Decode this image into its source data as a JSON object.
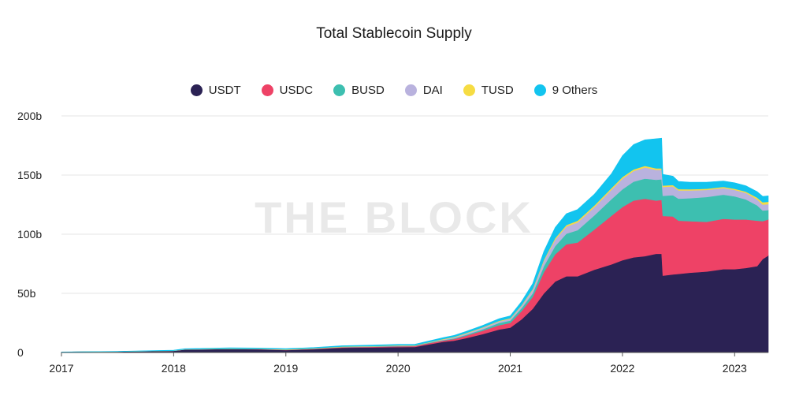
{
  "chart_data": {
    "type": "area",
    "stacked": true,
    "title": "Total Stablecoin Supply",
    "watermark": "THE BLOCK",
    "xlabel": "",
    "ylabel": "",
    "ylim": [
      0,
      200
    ],
    "xlim": [
      2017.0,
      2023.3
    ],
    "y_ticks": [
      {
        "value": 0,
        "label": "0"
      },
      {
        "value": 50,
        "label": "50b"
      },
      {
        "value": 100,
        "label": "100b"
      },
      {
        "value": 150,
        "label": "150b"
      },
      {
        "value": 200,
        "label": "200b"
      }
    ],
    "x_ticks": [
      {
        "value": 2017,
        "label": "2017"
      },
      {
        "value": 2018,
        "label": "2018"
      },
      {
        "value": 2019,
        "label": "2019"
      },
      {
        "value": 2020,
        "label": "2020"
      },
      {
        "value": 2021,
        "label": "2021"
      },
      {
        "value": 2022,
        "label": "2022"
      },
      {
        "value": 2023,
        "label": "2023"
      }
    ],
    "legend_position": "top-center",
    "x": [
      2017.0,
      2017.5,
      2018.0,
      2018.1,
      2018.5,
      2018.75,
      2019.0,
      2019.25,
      2019.5,
      2019.75,
      2020.0,
      2020.15,
      2020.25,
      2020.4,
      2020.5,
      2020.6,
      2020.75,
      2020.9,
      2021.0,
      2021.1,
      2021.2,
      2021.3,
      2021.4,
      2021.5,
      2021.6,
      2021.75,
      2021.9,
      2022.0,
      2022.1,
      2022.2,
      2022.3,
      2022.35,
      2022.36,
      2022.45,
      2022.5,
      2022.6,
      2022.75,
      2022.9,
      2023.0,
      2023.1,
      2023.2,
      2023.25,
      2023.3
    ],
    "series": [
      {
        "name": "USDT",
        "color": "#2b2254",
        "values": [
          0.4,
          0.8,
          1.5,
          2.5,
          3.0,
          2.7,
          2.0,
          2.8,
          4.0,
          4.3,
          4.6,
          4.7,
          6.5,
          9.0,
          10.0,
          12.0,
          15.5,
          19.5,
          21.0,
          28.0,
          37.0,
          50.0,
          60.0,
          64.5,
          64.5,
          70.0,
          74.5,
          78.0,
          80.5,
          81.5,
          83.5,
          83.5,
          65.0,
          66.0,
          66.5,
          67.5,
          68.5,
          70.5,
          70.5,
          71.5,
          73.0,
          79.0,
          82.0
        ]
      },
      {
        "name": "USDC",
        "color": "#ee4266",
        "values": [
          0,
          0,
          0,
          0.05,
          0.1,
          0.25,
          0.3,
          0.35,
          0.45,
          0.5,
          0.7,
          0.8,
          1.0,
          1.1,
          1.5,
          2.0,
          2.8,
          3.6,
          4.0,
          7.0,
          10.0,
          18.0,
          23.0,
          27.0,
          28.5,
          34.0,
          41.0,
          45.0,
          48.0,
          48.5,
          45.0,
          45.5,
          50.5,
          49.0,
          45.0,
          43.5,
          42.0,
          42.5,
          42.0,
          41.0,
          38.5,
          32.0,
          30.5
        ]
      },
      {
        "name": "BUSD",
        "color": "#3dbfb0",
        "values": [
          0,
          0,
          0,
          0,
          0,
          0,
          0.05,
          0.1,
          0.15,
          0.2,
          0.25,
          0.3,
          0.3,
          0.35,
          0.5,
          0.8,
          1.2,
          1.9,
          2.0,
          2.5,
          3.0,
          5.0,
          7.0,
          9.0,
          10.5,
          12.0,
          14.0,
          15.0,
          16.0,
          17.0,
          17.5,
          17.5,
          17.0,
          18.0,
          18.5,
          19.5,
          21.0,
          20.5,
          19.5,
          17.0,
          13.0,
          9.0,
          8.0
        ]
      },
      {
        "name": "DAI",
        "color": "#b9b2de",
        "values": [
          0,
          0,
          0.02,
          0.03,
          0.05,
          0.06,
          0.08,
          0.1,
          0.15,
          0.18,
          0.2,
          0.1,
          0.12,
          0.5,
          0.8,
          1.0,
          1.2,
          1.3,
          1.5,
          2.0,
          3.0,
          4.5,
          5.5,
          6.0,
          6.5,
          7.0,
          8.0,
          9.0,
          9.0,
          9.5,
          8.5,
          8.0,
          7.5,
          7.5,
          7.0,
          6.5,
          6.0,
          5.5,
          5.5,
          5.5,
          5.0,
          5.0,
          5.0
        ]
      },
      {
        "name": "TUSD",
        "color": "#f6dc43",
        "values": [
          0,
          0,
          0.1,
          0.15,
          0.2,
          0.2,
          0.25,
          0.25,
          0.3,
          0.3,
          0.3,
          0.3,
          0.3,
          0.4,
          0.4,
          0.45,
          0.5,
          0.5,
          0.5,
          0.6,
          0.8,
          1.0,
          1.2,
          1.3,
          1.4,
          1.4,
          1.4,
          1.4,
          1.3,
          1.3,
          1.2,
          1.2,
          1.1,
          1.1,
          1.1,
          1.0,
          1.0,
          1.0,
          1.0,
          1.0,
          1.5,
          2.0,
          2.0
        ]
      },
      {
        "name": "9 Others",
        "color": "#12c4ef",
        "values": [
          0.1,
          0.2,
          0.4,
          0.5,
          0.6,
          0.6,
          0.6,
          0.6,
          0.7,
          0.7,
          0.8,
          0.8,
          1.0,
          1.2,
          1.3,
          1.4,
          1.5,
          1.8,
          2.0,
          3.0,
          4.5,
          7.0,
          9.0,
          9.5,
          9.5,
          9.5,
          12.0,
          18.0,
          21.0,
          22.0,
          25.0,
          25.5,
          9.5,
          7.5,
          6.5,
          6.0,
          5.5,
          5.0,
          5.0,
          5.0,
          5.0,
          5.0,
          5.0
        ]
      }
    ]
  }
}
